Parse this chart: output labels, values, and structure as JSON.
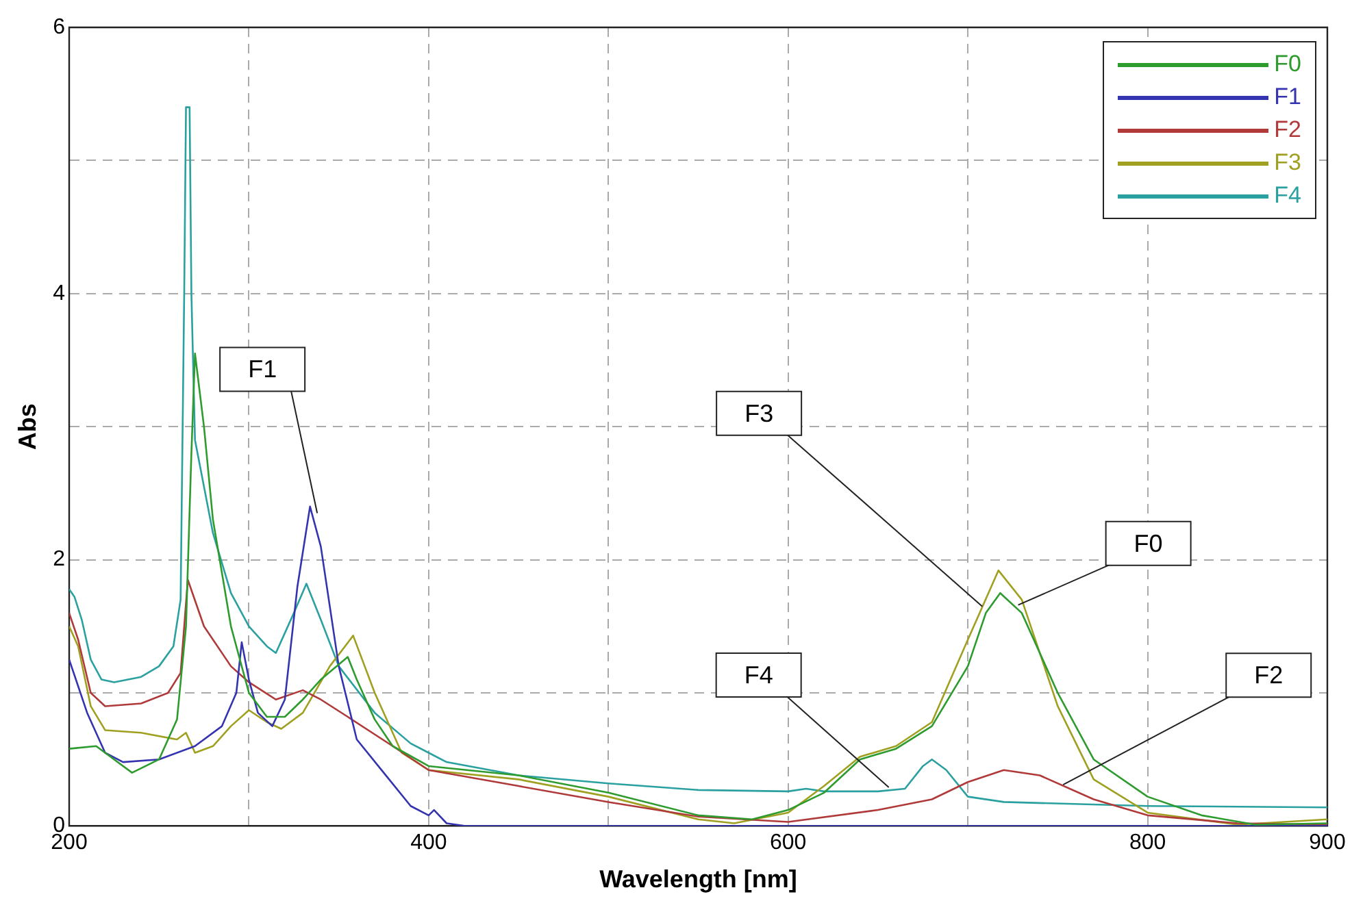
{
  "chart_data": {
    "type": "line",
    "xlabel": "Wavelength [nm]",
    "ylabel": "Abs",
    "xlim": [
      200,
      900
    ],
    "xticks": [
      200,
      {
        "value": 300,
        "label": null
      },
      400,
      {
        "value": 500,
        "label": null
      },
      600,
      {
        "value": 700,
        "label": null
      },
      800,
      900
    ],
    "ylim": [
      0,
      6
    ],
    "yticks": [
      0,
      {
        "value": 1,
        "label": null
      },
      2,
      {
        "value": 3,
        "label": null
      },
      4,
      {
        "value": 5,
        "label": null
      },
      6
    ],
    "grid": true,
    "legend": "top right",
    "marker": "none",
    "line_style": "solid",
    "annotations": [
      {
        "text": "F1",
        "x": 338,
        "y": 2.35
      },
      {
        "text": "F3",
        "x": 708,
        "y": 1.65
      },
      {
        "text": "F0",
        "x": 728,
        "y": 1.66
      },
      {
        "text": "F4",
        "x": 656,
        "y": 0.29
      },
      {
        "text": "F2",
        "x": 753,
        "y": 0.31
      }
    ],
    "series": [
      {
        "name": "F0",
        "color": "#2e9b2e",
        "x": [
          200,
          215,
          225,
          235,
          250,
          260,
          265,
          268,
          270,
          275,
          280,
          290,
          300,
          310,
          320,
          330,
          340,
          355,
          360,
          370,
          380,
          400,
          450,
          500,
          550,
          580,
          600,
          620,
          640,
          660,
          680,
          700,
          710,
          718,
          730,
          750,
          770,
          800,
          830,
          860,
          900
        ],
        "values": [
          0.58,
          0.6,
          0.5,
          0.4,
          0.5,
          0.8,
          1.5,
          2.8,
          3.55,
          3.0,
          2.3,
          1.5,
          1.0,
          0.82,
          0.82,
          0.95,
          1.1,
          1.27,
          1.1,
          0.8,
          0.6,
          0.45,
          0.38,
          0.25,
          0.08,
          0.05,
          0.12,
          0.25,
          0.5,
          0.58,
          0.75,
          1.2,
          1.6,
          1.75,
          1.6,
          1.0,
          0.5,
          0.22,
          0.08,
          0.01,
          0.02
        ]
      },
      {
        "name": "F1",
        "color": "#3434b0",
        "x": [
          200,
          210,
          220,
          230,
          250,
          270,
          285,
          293,
          296,
          300,
          305,
          313,
          320,
          327,
          334,
          340,
          350,
          360,
          375,
          390,
          400,
          403,
          410,
          420,
          600,
          900
        ],
        "values": [
          1.25,
          0.85,
          0.55,
          0.48,
          0.5,
          0.6,
          0.75,
          1.0,
          1.38,
          1.1,
          0.85,
          0.75,
          0.95,
          1.8,
          2.4,
          2.1,
          1.2,
          0.65,
          0.4,
          0.15,
          0.08,
          0.12,
          0.02,
          0.0,
          0.0,
          0.0
        ]
      },
      {
        "name": "F2",
        "color": "#b03a3a",
        "x": [
          200,
          205,
          212,
          220,
          240,
          255,
          262,
          266,
          275,
          290,
          300,
          315,
          330,
          340,
          355,
          380,
          400,
          450,
          500,
          550,
          600,
          650,
          680,
          700,
          720,
          740,
          770,
          800,
          850,
          900
        ],
        "values": [
          1.6,
          1.4,
          1.0,
          0.9,
          0.92,
          1.0,
          1.15,
          1.85,
          1.5,
          1.2,
          1.08,
          0.95,
          1.02,
          0.95,
          0.82,
          0.6,
          0.42,
          0.3,
          0.18,
          0.07,
          0.03,
          0.12,
          0.2,
          0.33,
          0.42,
          0.38,
          0.2,
          0.08,
          0.02,
          0.01
        ]
      },
      {
        "name": "F3",
        "color": "#a0a020",
        "x": [
          200,
          205,
          212,
          220,
          240,
          260,
          265,
          270,
          280,
          290,
          300,
          310,
          318,
          330,
          345,
          358,
          370,
          385,
          400,
          450,
          500,
          550,
          570,
          600,
          620,
          640,
          660,
          680,
          700,
          717,
          730,
          750,
          770,
          800,
          850,
          900
        ],
        "values": [
          1.5,
          1.35,
          0.9,
          0.72,
          0.7,
          0.65,
          0.7,
          0.55,
          0.6,
          0.75,
          0.87,
          0.78,
          0.73,
          0.85,
          1.2,
          1.43,
          1.0,
          0.55,
          0.42,
          0.35,
          0.22,
          0.05,
          0.02,
          0.1,
          0.3,
          0.52,
          0.6,
          0.78,
          1.4,
          1.92,
          1.7,
          0.9,
          0.35,
          0.1,
          0.01,
          0.05
        ]
      },
      {
        "name": "F4",
        "color": "#2aa0a0",
        "x": [
          200,
          203,
          207,
          212,
          218,
          225,
          240,
          250,
          258,
          262,
          264,
          265,
          267,
          268,
          270,
          280,
          290,
          300,
          310,
          315,
          325,
          332,
          340,
          350,
          370,
          390,
          400,
          410,
          450,
          500,
          550,
          600,
          610,
          620,
          650,
          665,
          675,
          680,
          688,
          700,
          720,
          800,
          900
        ],
        "values": [
          1.78,
          1.72,
          1.55,
          1.25,
          1.1,
          1.08,
          1.12,
          1.2,
          1.35,
          1.7,
          4.0,
          5.4,
          5.4,
          4.0,
          2.9,
          2.2,
          1.75,
          1.5,
          1.35,
          1.3,
          1.6,
          1.82,
          1.55,
          1.2,
          0.85,
          0.62,
          0.55,
          0.48,
          0.38,
          0.32,
          0.27,
          0.26,
          0.28,
          0.26,
          0.26,
          0.28,
          0.45,
          0.5,
          0.42,
          0.22,
          0.18,
          0.15,
          0.14
        ]
      }
    ]
  }
}
